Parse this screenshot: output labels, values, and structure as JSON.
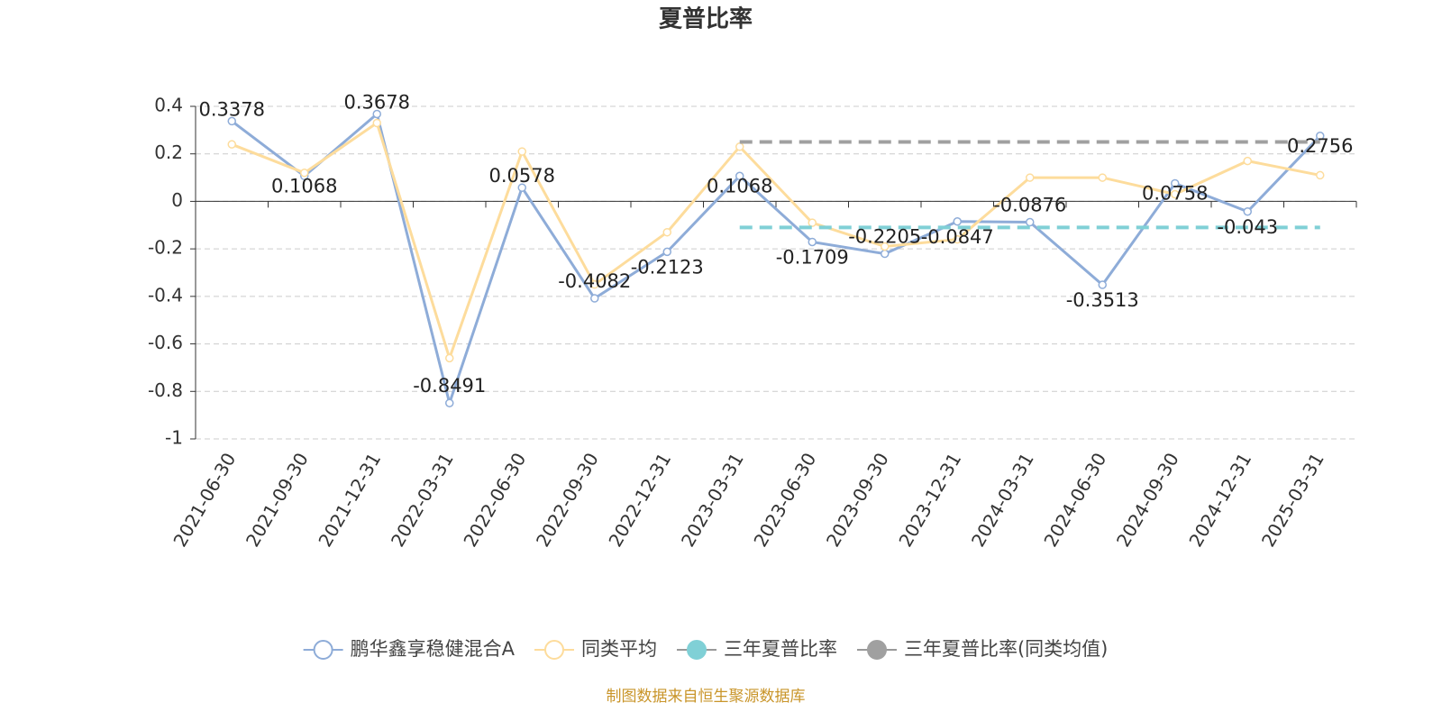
{
  "chart_data": {
    "type": "line",
    "title": "夏普比率",
    "categories": [
      "2021-06-30",
      "2021-09-30",
      "2021-12-31",
      "2022-03-31",
      "2022-06-30",
      "2022-09-30",
      "2022-12-31",
      "2023-03-31",
      "2023-06-30",
      "2023-09-30",
      "2023-12-31",
      "2024-03-31",
      "2024-06-30",
      "2024-09-30",
      "2024-12-31",
      "2025-03-31"
    ],
    "series": [
      {
        "name": "鹏华鑫享稳健混合A",
        "color": "#8eacd8",
        "labels": true,
        "values": [
          0.3378,
          0.1068,
          0.3678,
          -0.8491,
          0.0578,
          -0.4082,
          -0.2123,
          0.1068,
          -0.1709,
          -0.2205,
          -0.0847,
          -0.0876,
          -0.3513,
          0.0758,
          -0.043,
          0.2756
        ]
      },
      {
        "name": "同类平均",
        "color": "#fddc9c",
        "values": [
          0.24,
          0.12,
          0.33,
          -0.66,
          0.21,
          -0.35,
          -0.13,
          0.23,
          -0.09,
          -0.19,
          -0.16,
          0.1,
          0.1,
          0.03,
          0.17,
          0.11
        ]
      },
      {
        "name": "三年夏普比率",
        "color": "#80d0d6",
        "dashed": true,
        "values": [
          null,
          null,
          null,
          null,
          null,
          null,
          null,
          -0.11,
          -0.11,
          -0.11,
          -0.11,
          -0.11,
          -0.11,
          -0.11,
          -0.11,
          -0.11
        ]
      },
      {
        "name": "三年夏普比率(同类均值)",
        "color": "#a0a0a0",
        "dashed": true,
        "values": [
          null,
          null,
          null,
          null,
          null,
          null,
          null,
          0.25,
          0.25,
          0.25,
          0.25,
          0.25,
          0.25,
          0.25,
          0.25,
          0.25
        ]
      }
    ],
    "ylim": [
      -1,
      0.4
    ],
    "yticks": [
      -1,
      -0.8,
      -0.6,
      -0.4,
      -0.2,
      0,
      0.2,
      0.4
    ],
    "grid": true,
    "legend": "bottom",
    "source": "制图数据来自恒生聚源数据库"
  }
}
